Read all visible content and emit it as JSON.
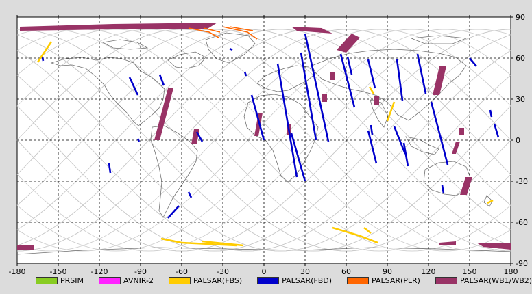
{
  "map": {
    "x_ticks": [
      "-180",
      "-150",
      "-120",
      "-90",
      "-60",
      "-30",
      "0",
      "30",
      "60",
      "90",
      "120",
      "150",
      "180"
    ],
    "y_ticks": [
      "90",
      "60",
      "30",
      "0",
      "-30",
      "-60",
      "-90"
    ],
    "colors": {
      "PRSIM": "#88cc22",
      "AVNIR-2": "#ff22ff",
      "PALSAR(FBS)": "#ffcc00",
      "PALSAR(FBD)": "#0000cc",
      "PALSAR(PLR)": "#ff6600",
      "PALSAR(WB1/WB2)": "#993366"
    }
  },
  "legend": [
    {
      "label": "PRSIM",
      "color": "#88cc22"
    },
    {
      "label": "AVNIR-2",
      "color": "#ff22ff"
    },
    {
      "label": "PALSAR(FBS)",
      "color": "#ffcc00"
    },
    {
      "label": "PALSAR(FBD)",
      "color": "#0000cc"
    },
    {
      "label": "PALSAR(PLR)",
      "color": "#ff6600"
    },
    {
      "label": "PALSAR(WB1/WB2)",
      "color": "#993366"
    }
  ]
}
